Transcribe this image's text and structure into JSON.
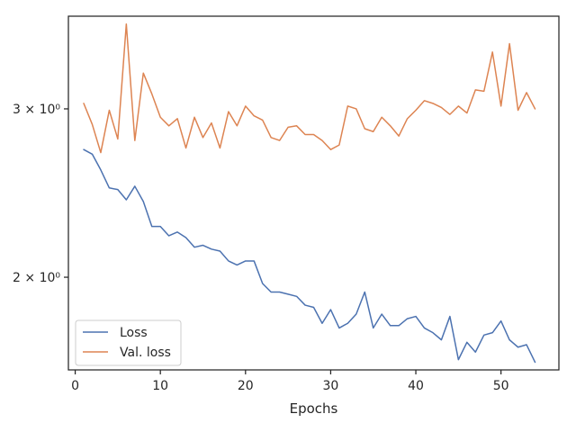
{
  "chart_data": {
    "type": "line",
    "xlabel": "Epochs",
    "ylabel": "",
    "yscale": "log",
    "xlim": [
      -0.8,
      56.8
    ],
    "ylim": [
      1.6,
      3.75
    ],
    "x_ticks": [
      0,
      10,
      20,
      30,
      40,
      50
    ],
    "y_ticks": [
      {
        "value": 2,
        "label": "2 × 10⁰"
      },
      {
        "value": 3,
        "label": "3 × 10⁰"
      }
    ],
    "grid": false,
    "legend_position": "lower-left",
    "x": [
      1,
      2,
      3,
      4,
      5,
      6,
      7,
      8,
      9,
      10,
      11,
      12,
      13,
      14,
      15,
      16,
      17,
      18,
      19,
      20,
      21,
      22,
      23,
      24,
      25,
      26,
      27,
      28,
      29,
      30,
      31,
      32,
      33,
      34,
      35,
      36,
      37,
      38,
      39,
      40,
      41,
      42,
      43,
      44,
      45,
      46,
      47,
      48,
      49,
      50,
      51,
      52,
      53,
      54
    ],
    "series": [
      {
        "name": "Loss",
        "color": "#4c72b0",
        "values": [
          2.72,
          2.69,
          2.59,
          2.48,
          2.47,
          2.41,
          2.49,
          2.4,
          2.26,
          2.26,
          2.21,
          2.23,
          2.2,
          2.15,
          2.16,
          2.14,
          2.13,
          2.08,
          2.06,
          2.08,
          2.08,
          1.97,
          1.93,
          1.93,
          1.92,
          1.91,
          1.87,
          1.86,
          1.79,
          1.85,
          1.77,
          1.79,
          1.83,
          1.93,
          1.77,
          1.83,
          1.78,
          1.78,
          1.81,
          1.82,
          1.77,
          1.75,
          1.72,
          1.82,
          1.64,
          1.71,
          1.67,
          1.74,
          1.75,
          1.8,
          1.72,
          1.69,
          1.7,
          1.63
        ]
      },
      {
        "name": "Val. loss",
        "color": "#dd8452",
        "values": [
          3.04,
          2.89,
          2.7,
          2.99,
          2.79,
          3.68,
          2.78,
          3.27,
          3.11,
          2.94,
          2.88,
          2.93,
          2.73,
          2.94,
          2.8,
          2.9,
          2.73,
          2.98,
          2.88,
          3.02,
          2.95,
          2.92,
          2.8,
          2.78,
          2.87,
          2.88,
          2.82,
          2.82,
          2.78,
          2.72,
          2.75,
          3.02,
          3.0,
          2.86,
          2.84,
          2.94,
          2.88,
          2.81,
          2.93,
          2.99,
          3.06,
          3.04,
          3.01,
          2.96,
          3.02,
          2.97,
          3.14,
          3.13,
          3.44,
          3.02,
          3.51,
          2.99,
          3.12,
          3.0
        ]
      }
    ]
  }
}
